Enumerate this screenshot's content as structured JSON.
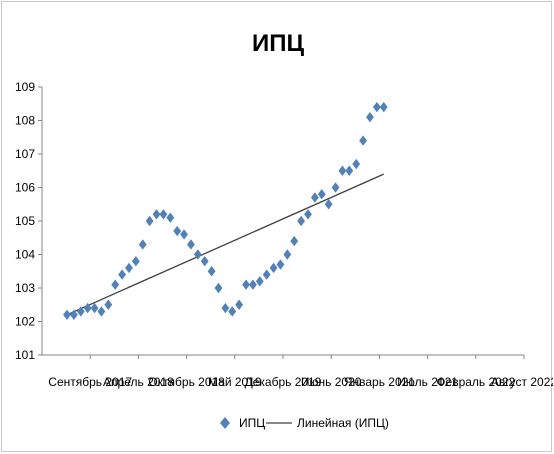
{
  "chart_data": {
    "type": "scatter",
    "title": "ИПЦ",
    "xlabel": "",
    "ylabel": "",
    "ylim": [
      101,
      109
    ],
    "yticks": [
      "101",
      "102",
      "103",
      "104",
      "105",
      "106",
      "107",
      "108",
      "109"
    ],
    "xticks": [
      "Сентябрь 2017",
      "Апрель 2018",
      "Октябрь 2018",
      "Май 2019",
      "Декабрь 2019",
      "Июнь 2020",
      "Январь 2021",
      "Июль 2021",
      "Февраль 2022",
      "Август 2022"
    ],
    "grid": false,
    "legend_position": "bottom",
    "series": [
      {
        "name": "ИПЦ",
        "marker": "diamond",
        "color": "#4f81bd",
        "values": [
          102.2,
          102.2,
          102.3,
          102.4,
          102.4,
          102.3,
          102.5,
          103.1,
          103.4,
          103.6,
          103.8,
          104.3,
          105.0,
          105.2,
          105.2,
          105.1,
          104.7,
          104.6,
          104.3,
          104.0,
          103.8,
          103.5,
          103.0,
          102.4,
          102.3,
          102.5,
          103.1,
          103.1,
          103.2,
          103.4,
          103.6,
          103.7,
          104.0,
          104.4,
          105.0,
          105.2,
          105.7,
          105.8,
          105.5,
          106.0,
          106.5,
          106.5,
          106.7,
          107.4,
          108.1,
          108.4,
          108.4
        ]
      },
      {
        "name": "Линейная (ИПЦ)",
        "kind": "linear-trendline",
        "color": "#404040",
        "start": 102.2,
        "end": 106.4
      }
    ]
  }
}
